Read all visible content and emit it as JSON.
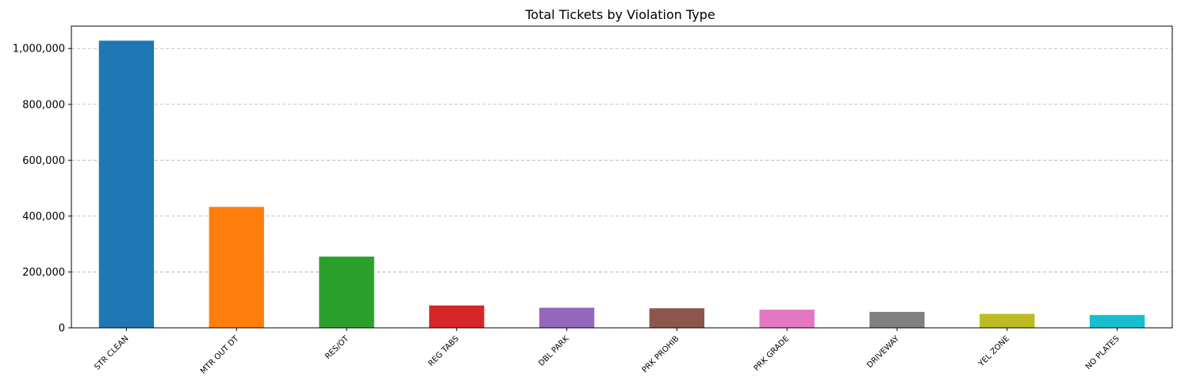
{
  "chart_data": {
    "type": "bar",
    "title": "Total Tickets by Violation Type",
    "xlabel": "",
    "ylabel": "",
    "categories": [
      "STR CLEAN",
      "MTR OUT DT",
      "RES/OT",
      "REG TABS",
      "DBL PARK",
      "PRK PROHIB",
      "PRK GRADE",
      "DRIVEWAY",
      "YEL ZONE",
      "NO PLATES"
    ],
    "values": [
      1028000,
      433000,
      255000,
      80000,
      72000,
      70000,
      65000,
      57000,
      50000,
      46000
    ],
    "colors": [
      "#1f77b4",
      "#ff7f0e",
      "#2ca02c",
      "#d62728",
      "#9467bd",
      "#8c564b",
      "#e377c2",
      "#7f7f7f",
      "#bcbd22",
      "#17becf"
    ],
    "ylim": [
      0,
      1080000
    ],
    "yticks": [
      0,
      200000,
      400000,
      600000,
      800000,
      1000000
    ],
    "ytick_labels": [
      "0",
      "200,000",
      "400,000",
      "600,000",
      "800,000",
      "1,000,000"
    ],
    "grid": "y-dashed",
    "legend": "none"
  }
}
